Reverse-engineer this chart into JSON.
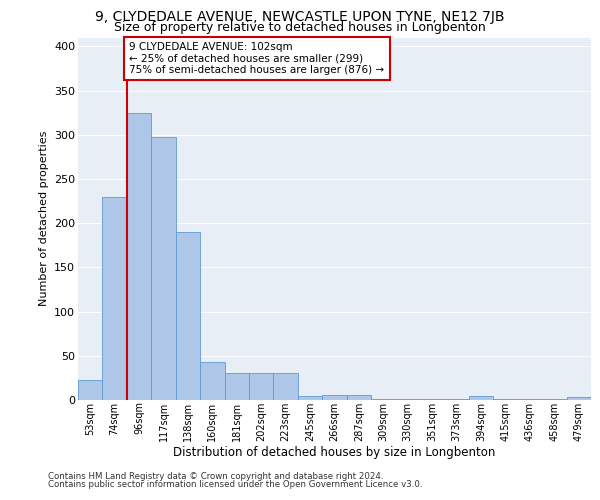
{
  "title1": "9, CLYDEDALE AVENUE, NEWCASTLE UPON TYNE, NE12 7JB",
  "title2": "Size of property relative to detached houses in Longbenton",
  "xlabel": "Distribution of detached houses by size in Longbenton",
  "ylabel": "Number of detached properties",
  "categories": [
    "53sqm",
    "74sqm",
    "96sqm",
    "117sqm",
    "138sqm",
    "160sqm",
    "181sqm",
    "202sqm",
    "223sqm",
    "245sqm",
    "266sqm",
    "287sqm",
    "309sqm",
    "330sqm",
    "351sqm",
    "373sqm",
    "394sqm",
    "415sqm",
    "436sqm",
    "458sqm",
    "479sqm"
  ],
  "values": [
    23,
    230,
    325,
    297,
    190,
    43,
    30,
    30,
    30,
    5,
    6,
    6,
    1,
    1,
    1,
    1,
    5,
    1,
    1,
    1,
    3
  ],
  "bar_color": "#aec6e8",
  "bar_edge_color": "#5b9bd5",
  "vline_x": 1.5,
  "vline_color": "#cc0000",
  "annotation_text": "9 CLYDEDALE AVENUE: 102sqm\n← 25% of detached houses are smaller (299)\n75% of semi-detached houses are larger (876) →",
  "annotation_box_color": "#ffffff",
  "annotation_box_edge": "#cc0000",
  "ylim": [
    0,
    410
  ],
  "yticks": [
    0,
    50,
    100,
    150,
    200,
    250,
    300,
    350,
    400
  ],
  "footnote1": "Contains HM Land Registry data © Crown copyright and database right 2024.",
  "footnote2": "Contains public sector information licensed under the Open Government Licence v3.0.",
  "bg_color": "#e8eef6",
  "grid_color": "#ffffff",
  "title1_fontsize": 10,
  "title2_fontsize": 9
}
